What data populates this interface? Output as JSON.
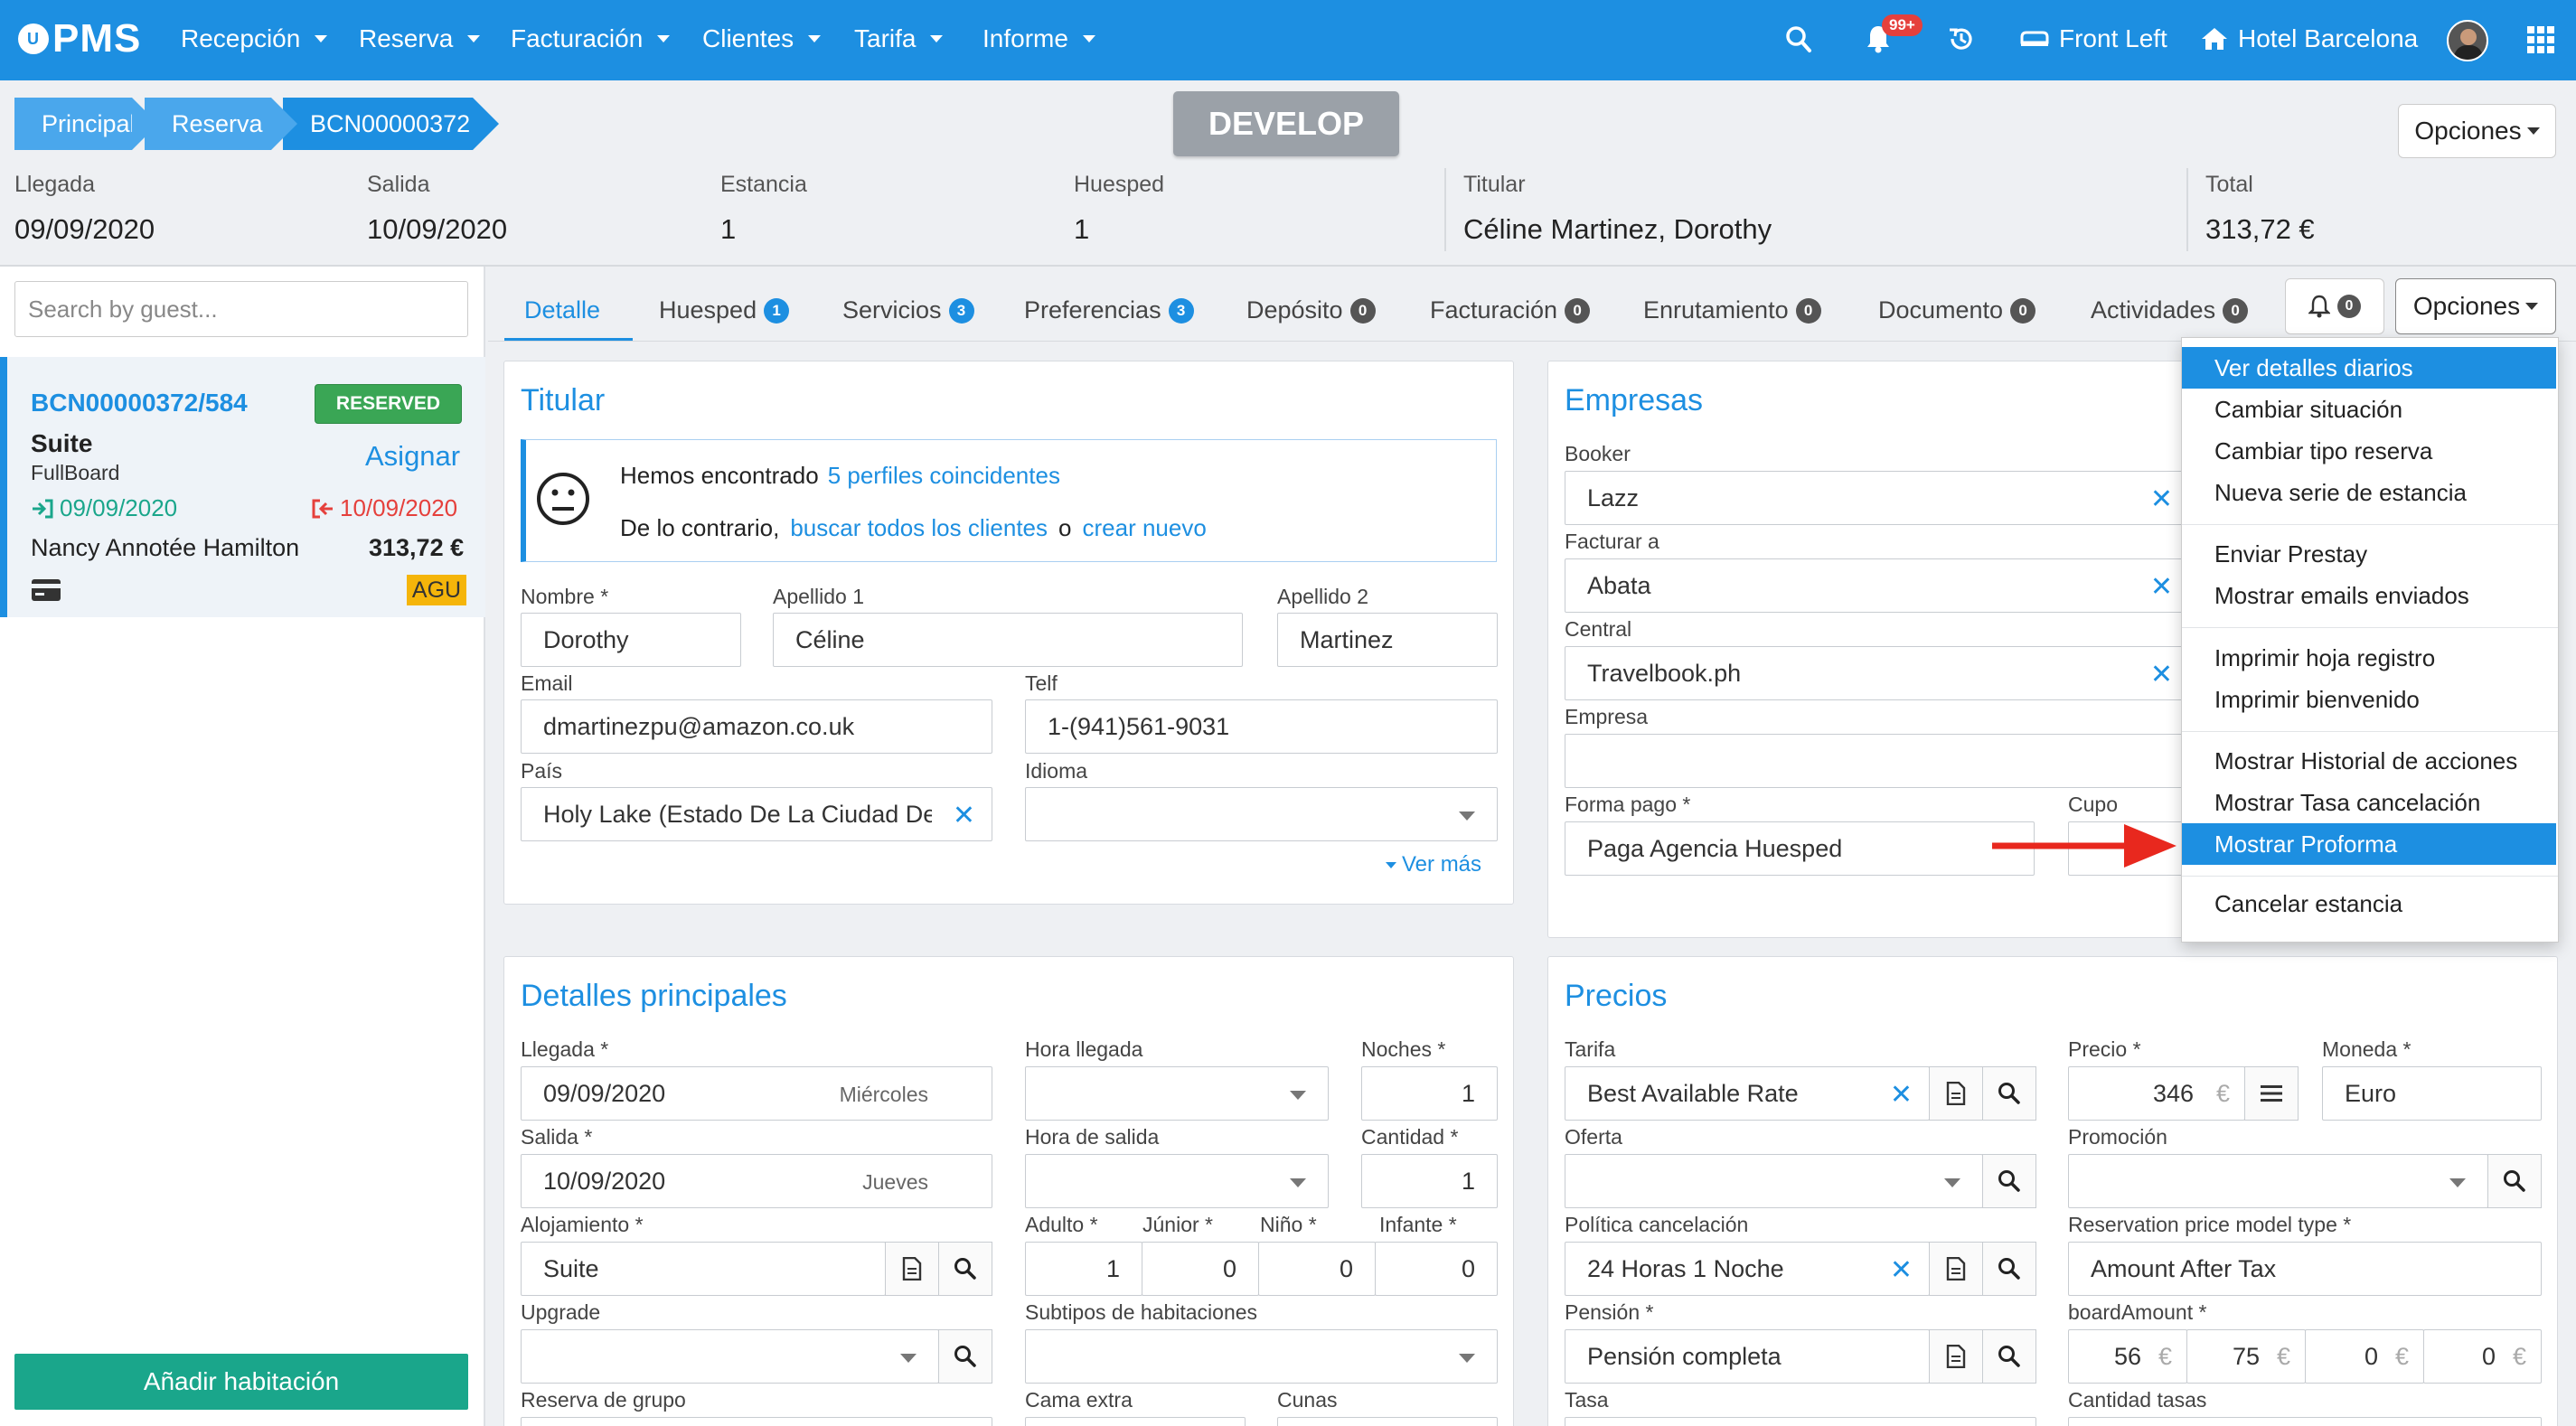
{
  "nav": {
    "brand": "PMS",
    "brand_logo": "U",
    "menus": [
      "Recepción",
      "Reserva",
      "Facturación",
      "Clientes",
      "Tarifa",
      "Informe"
    ],
    "notif_badge": "99+",
    "front": "Front Left",
    "hotel": "Hotel Barcelona"
  },
  "breadcrumb": [
    "Principal",
    "Reserva",
    "BCN00000372"
  ],
  "env_label": "DEVELOP",
  "options_label": "Opciones",
  "summary": {
    "arrival_label": "Llegada",
    "arrival": "09/09/2020",
    "departure_label": "Salida",
    "departure": "10/09/2020",
    "stay_label": "Estancia",
    "stay": "1",
    "guest_label": "Huesped",
    "guest": "1",
    "holder_label": "Titular",
    "holder": "Céline Martinez, Dorothy",
    "total_label": "Total",
    "total": "313,72 €"
  },
  "left": {
    "search_placeholder": "Search by guest...",
    "card": {
      "code": "BCN00000372/584",
      "status": "RESERVED",
      "room": "Suite",
      "board": "FullBoard",
      "assign": "Asignar",
      "arrival": "09/09/2020",
      "departure": "10/09/2020",
      "guest": "Nancy Annotée Hamilton",
      "amount": "313,72 €",
      "tag": "AGU"
    },
    "add_room": "Añadir habitación"
  },
  "tabs": [
    {
      "label": "Detalle",
      "count": ""
    },
    {
      "label": "Huesped",
      "count": "1"
    },
    {
      "label": "Servicios",
      "count": "3"
    },
    {
      "label": "Preferencias",
      "count": "3"
    },
    {
      "label": "Depósito",
      "count": "0"
    },
    {
      "label": "Facturación",
      "count": "0"
    },
    {
      "label": "Enrutamiento",
      "count": "0"
    },
    {
      "label": "Documento",
      "count": "0"
    },
    {
      "label": "Actividades",
      "count": "0"
    }
  ],
  "bell_count": "0",
  "titular": {
    "title": "Titular",
    "found_prefix": "Hemos encontrado",
    "found_link": "5 perfiles coincidentes",
    "otherwise": "De lo contrario,",
    "search_all": "buscar todos los clientes",
    "or": "o",
    "create": "crear nuevo",
    "nombre_label": "Nombre *",
    "nombre": "Dorothy",
    "ap1_label": "Apellido 1",
    "ap1": "Céline",
    "ap2_label": "Apellido 2",
    "ap2": "Martinez",
    "email_label": "Email",
    "email": "dmartinezpu@amazon.co.uk",
    "telf_label": "Telf",
    "telf": "1-(941)561-9031",
    "pais_label": "País",
    "pais": "Holy Lake (Estado De La Ciudad Del Vaticano)",
    "idioma_label": "Idioma",
    "idioma": "",
    "ver_mas": "Ver más"
  },
  "empresas": {
    "title": "Empresas",
    "booker_label": "Booker",
    "booker": "Lazz",
    "facturar_label": "Facturar a",
    "facturar": "Abata",
    "central_label": "Central",
    "central": "Travelbook.ph",
    "empresa_label": "Empresa",
    "empresa": "",
    "forma_label": "Forma pago *",
    "forma": "Paga Agencia Huesped",
    "cupo_label": "Cupo",
    "cupo": ""
  },
  "detalles": {
    "title": "Detalles principales",
    "llegada_label": "Llegada *",
    "llegada": "09/09/2020",
    "llegada_day": "Miércoles",
    "hora_llegada_label": "Hora llegada",
    "noches_label": "Noches *",
    "noches": "1",
    "salida_label": "Salida *",
    "salida": "10/09/2020",
    "salida_day": "Jueves",
    "hora_salida_label": "Hora de salida",
    "cantidad_label": "Cantidad *",
    "cantidad": "1",
    "aloj_label": "Alojamiento *",
    "aloj": "Suite",
    "adulto_label": "Adulto *",
    "adulto": "1",
    "junior_label": "Júnior *",
    "junior": "0",
    "nino_label": "Niño *",
    "nino": "0",
    "infante_label": "Infante *",
    "infante": "0",
    "upgrade_label": "Upgrade",
    "subtipos_label": "Subtipos de habitaciones",
    "grupo_label": "Reserva de grupo",
    "cama_label": "Cama extra",
    "cunas_label": "Cunas"
  },
  "precios": {
    "title": "Precios",
    "tarifa_label": "Tarifa",
    "tarifa": "Best Available Rate",
    "precio_label": "Precio *",
    "precio": "346",
    "currency_symbol": "€",
    "moneda_label": "Moneda *",
    "moneda": "Euro",
    "oferta_label": "Oferta",
    "promo_label": "Promoción",
    "politica_label": "Política cancelación",
    "politica": "24 Horas 1 Noche",
    "rpm_label": "Reservation price model type *",
    "rpm": "Amount After Tax",
    "pension_label": "Pensión *",
    "pension": "Pensión completa",
    "board_label": "boardAmount *",
    "board": [
      "56",
      "75",
      "0",
      "0"
    ],
    "tasa_label": "Tasa",
    "cant_tasas_label": "Cantidad tasas"
  },
  "menu": {
    "groups": [
      [
        "Ver detalles diarios",
        "Cambiar situación",
        "Cambiar tipo reserva",
        "Nueva serie de estancia"
      ],
      [
        "Enviar Prestay",
        "Mostrar emails enviados"
      ],
      [
        "Imprimir hoja registro",
        "Imprimir bienvenido"
      ],
      [
        "Mostrar Historial de acciones",
        "Mostrar Tasa cancelación",
        "Mostrar Proforma"
      ],
      [
        "Cancelar estancia"
      ]
    ]
  },
  "colors": {
    "primary": "#1d8fe1",
    "success": "#1aa68b",
    "danger": "#e5403c",
    "arrow": "#e8281e",
    "tag": "#f5b50a"
  }
}
